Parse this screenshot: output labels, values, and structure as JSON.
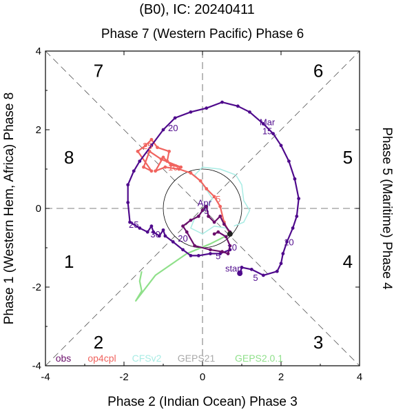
{
  "chart_data": {
    "type": "line",
    "title": "(B0), IC: 20240411",
    "xlabel": "Phase 2 (Indian Ocean) Phase 3",
    "ylabel": "Phase 1 (Western Hem, Africa) Phase 8",
    "top_label": "Phase 7 (Western Pacific) Phase 6",
    "right_label": "Phase 5 (Maritime) Phase 4",
    "xlim": [
      -4,
      4
    ],
    "ylim": [
      -4,
      4
    ],
    "xticks": [
      "-4",
      "-2",
      "0",
      "2",
      "4"
    ],
    "yticks": [
      "-4",
      "-2",
      "0",
      "2",
      "4"
    ],
    "unit_circle_radius": 1,
    "phase_numbers": [
      {
        "label": "1",
        "x": -3.4,
        "y": -1.35
      },
      {
        "label": "2",
        "x": -2.65,
        "y": -3.4
      },
      {
        "label": "3",
        "x": 2.95,
        "y": -3.4
      },
      {
        "label": "4",
        "x": 3.7,
        "y": -1.35
      },
      {
        "label": "5",
        "x": 3.7,
        "y": 1.3
      },
      {
        "label": "6",
        "x": 2.95,
        "y": 3.5
      },
      {
        "label": "7",
        "x": -2.65,
        "y": 3.5
      },
      {
        "label": "8",
        "x": -3.4,
        "y": 1.3
      }
    ],
    "legend_position": "bottom-left",
    "series": [
      {
        "name": "obs",
        "color": "#6b0f6b",
        "values": [
          {
            "x": 0.3,
            "y": -0.65
          },
          {
            "x": 0.4,
            "y": -0.6
          },
          {
            "x": 0.6,
            "y": -0.72
          },
          {
            "x": 0.7,
            "y": -0.95
          },
          {
            "x": 0.65,
            "y": -1.15
          },
          {
            "x": 0.5,
            "y": -1.1
          },
          {
            "x": 0.2,
            "y": -1.05
          },
          {
            "x": -0.2,
            "y": -0.95
          },
          {
            "x": -0.4,
            "y": -0.6
          },
          {
            "x": -0.5,
            "y": -0.45
          },
          {
            "x": -0.3,
            "y": -0.3
          },
          {
            "x": -0.1,
            "y": -0.2
          },
          {
            "x": 0.0,
            "y": -0.05
          },
          {
            "x": 0.1,
            "y": 0.05
          },
          {
            "x": 0.15,
            "y": -0.2
          },
          {
            "x": 0.3,
            "y": -0.35
          },
          {
            "x": 0.45,
            "y": -0.2
          },
          {
            "x": 0.55,
            "y": -0.4
          },
          {
            "x": 0.7,
            "y": -0.6
          }
        ]
      },
      {
        "name": "obs",
        "color": "#4f0a8c",
        "values": [
          {
            "x": 0.95,
            "y": -1.65
          },
          {
            "x": 1.0,
            "y": -1.5
          },
          {
            "x": 1.25,
            "y": -1.55
          },
          {
            "x": 1.55,
            "y": -1.7
          },
          {
            "x": 1.9,
            "y": -1.6
          },
          {
            "x": 2.0,
            "y": -1.4
          },
          {
            "x": 2.05,
            "y": -1.15
          },
          {
            "x": 2.15,
            "y": -0.85
          },
          {
            "x": 2.3,
            "y": -0.5
          },
          {
            "x": 2.4,
            "y": -0.2
          },
          {
            "x": 2.45,
            "y": 0.25
          },
          {
            "x": 2.35,
            "y": 0.75
          },
          {
            "x": 2.2,
            "y": 1.2
          },
          {
            "x": 2.0,
            "y": 1.6
          },
          {
            "x": 1.8,
            "y": 1.9
          },
          {
            "x": 1.55,
            "y": 2.15
          },
          {
            "x": 1.2,
            "y": 2.45
          },
          {
            "x": 0.9,
            "y": 2.6
          },
          {
            "x": 0.5,
            "y": 2.7
          },
          {
            "x": 0.1,
            "y": 2.55
          },
          {
            "x": -0.3,
            "y": 2.45
          },
          {
            "x": -0.7,
            "y": 2.3
          },
          {
            "x": -1.0,
            "y": 2.0
          },
          {
            "x": -1.3,
            "y": 1.6
          },
          {
            "x": -1.6,
            "y": 1.2
          },
          {
            "x": -1.75,
            "y": 0.95
          },
          {
            "x": -1.9,
            "y": 0.6
          },
          {
            "x": -1.9,
            "y": 0.15
          },
          {
            "x": -1.85,
            "y": -0.35
          },
          {
            "x": -1.6,
            "y": -0.5
          },
          {
            "x": -1.4,
            "y": -0.6
          },
          {
            "x": -1.3,
            "y": -0.45
          },
          {
            "x": -1.25,
            "y": -0.6
          },
          {
            "x": -1.1,
            "y": -0.7
          },
          {
            "x": -1.0,
            "y": -0.55
          },
          {
            "x": -0.95,
            "y": -0.7
          },
          {
            "x": -0.75,
            "y": -0.85
          },
          {
            "x": -0.5,
            "y": -1.05
          },
          {
            "x": -0.3,
            "y": -1.2
          },
          {
            "x": -0.1,
            "y": -1.2
          },
          {
            "x": 0.2,
            "y": -1.15
          },
          {
            "x": 0.45,
            "y": -1.15
          },
          {
            "x": 0.7,
            "y": -1.05
          }
        ]
      },
      {
        "name": "op4cpl",
        "color": "#f0645f",
        "values": [
          {
            "x": 0.7,
            "y": -0.65
          },
          {
            "x": 0.55,
            "y": -0.35
          },
          {
            "x": 0.45,
            "y": 0.05
          },
          {
            "x": 0.3,
            "y": 0.3
          },
          {
            "x": 0.1,
            "y": 0.5
          },
          {
            "x": -0.05,
            "y": 0.7
          },
          {
            "x": -0.3,
            "y": 0.9
          },
          {
            "x": -0.6,
            "y": 1.0
          },
          {
            "x": -0.95,
            "y": 1.05
          },
          {
            "x": -1.2,
            "y": 0.95
          },
          {
            "x": -1.0,
            "y": 1.3
          },
          {
            "x": -0.8,
            "y": 1.1
          },
          {
            "x": -0.55,
            "y": 1.05
          },
          {
            "x": -1.05,
            "y": 1.25
          },
          {
            "x": -1.35,
            "y": 1.45
          },
          {
            "x": -1.5,
            "y": 1.05
          },
          {
            "x": -1.3,
            "y": 0.95
          },
          {
            "x": -1.65,
            "y": 1.45
          },
          {
            "x": -1.45,
            "y": 1.6
          },
          {
            "x": -1.3,
            "y": 1.75
          },
          {
            "x": -1.15,
            "y": 1.55
          },
          {
            "x": -0.85,
            "y": 1.45
          },
          {
            "x": -0.9,
            "y": 1.2
          }
        ]
      },
      {
        "name": "CFSv2",
        "color": "#a8ece4",
        "values": [
          {
            "x": 0.7,
            "y": -0.65
          },
          {
            "x": 0.6,
            "y": -0.5
          },
          {
            "x": 0.3,
            "y": -0.45
          },
          {
            "x": 0.0,
            "y": -0.65
          },
          {
            "x": -0.3,
            "y": -0.5
          },
          {
            "x": -0.2,
            "y": -0.25
          },
          {
            "x": 0.05,
            "y": -0.05
          },
          {
            "x": 0.25,
            "y": 0.25
          },
          {
            "x": 0.05,
            "y": 0.55
          },
          {
            "x": -0.2,
            "y": 0.85
          },
          {
            "x": 0.0,
            "y": 1.05
          },
          {
            "x": 0.45,
            "y": 1.0
          },
          {
            "x": 0.85,
            "y": 0.85
          },
          {
            "x": 1.0,
            "y": 0.6
          },
          {
            "x": 1.05,
            "y": 0.2
          },
          {
            "x": 1.2,
            "y": -0.05
          },
          {
            "x": 1.05,
            "y": -0.35
          },
          {
            "x": 0.8,
            "y": -0.45
          }
        ]
      },
      {
        "name": "GEPS21",
        "color": "#a9a9a9",
        "values": []
      },
      {
        "name": "GEPS2.0.1",
        "color": "#8fe08a",
        "values": [
          {
            "x": 0.7,
            "y": -0.65
          },
          {
            "x": 0.2,
            "y": -0.9
          },
          {
            "x": -0.4,
            "y": -1.15
          },
          {
            "x": -1.2,
            "y": -1.7
          },
          {
            "x": -1.7,
            "y": -2.35
          },
          {
            "x": -1.55,
            "y": -2.1
          },
          {
            "x": -1.6,
            "y": -1.85
          },
          {
            "x": -1.55,
            "y": -1.6
          }
        ]
      }
    ],
    "annotations": [
      {
        "text": "Mar",
        "x": 1.65,
        "y": 2.2,
        "series": "obs"
      },
      {
        "text": "15",
        "x": 1.65,
        "y": 1.97,
        "series": "obs"
      },
      {
        "text": "20",
        "x": -0.75,
        "y": 2.05,
        "series": "obs"
      },
      {
        "text": "25",
        "x": -1.75,
        "y": -0.4,
        "series": "obs"
      },
      {
        "text": "30",
        "x": -1.2,
        "y": -0.65,
        "series": "obs"
      },
      {
        "text": "10",
        "x": 2.2,
        "y": -0.85,
        "series": "obs"
      },
      {
        "text": "5",
        "x": 1.35,
        "y": -1.75,
        "series": "obs"
      },
      {
        "text": "start",
        "x": 0.8,
        "y": -1.52,
        "series": "obs"
      },
      {
        "text": "Apr",
        "x": 0.05,
        "y": 0.15,
        "series": "obs"
      },
      {
        "text": "5",
        "x": 0.1,
        "y": -0.05,
        "series": "obs"
      },
      {
        "text": "20",
        "x": -0.5,
        "y": -0.75,
        "series": "obs"
      },
      {
        "text": "10",
        "x": 0.75,
        "y": -0.98,
        "series": "obs"
      },
      {
        "text": "5",
        "x": 0.4,
        "y": -1.2,
        "series": "obs"
      },
      {
        "text": "25",
        "x": -1.4,
        "y": 1.6,
        "series": "op4cpl"
      },
      {
        "text": "10",
        "x": -0.75,
        "y": 1.05,
        "series": "op4cpl"
      },
      {
        "text": "5",
        "x": 0.4,
        "y": 0.25,
        "series": "op4cpl"
      }
    ]
  }
}
